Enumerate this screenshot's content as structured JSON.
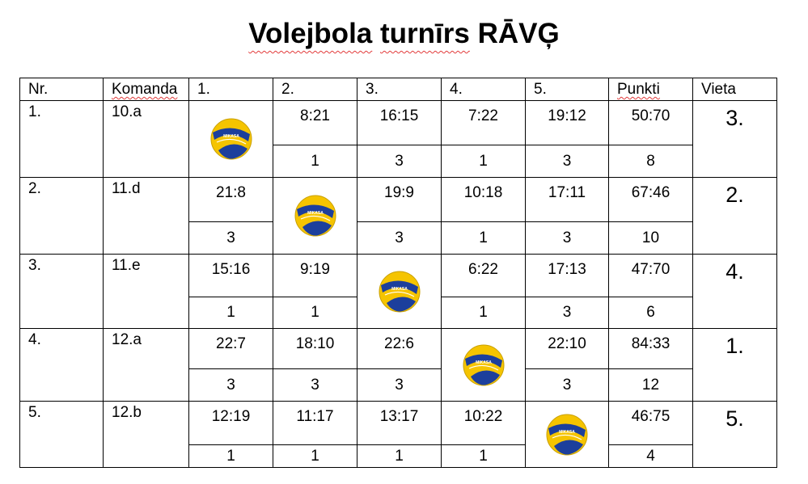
{
  "title": {
    "part1": "Volejbola",
    "part2": "turnīrs",
    "part3": "RĀVĢ"
  },
  "headers": [
    "Nr.",
    "Komanda",
    "1.",
    "2.",
    "3.",
    "4.",
    "5.",
    "Punkti",
    "Vieta"
  ],
  "rows": [
    {
      "nr": "1.",
      "team": "10.a",
      "scores": [
        "",
        "8:21",
        "16:15",
        "7:22",
        "19:12"
      ],
      "points": [
        "",
        "1",
        "3",
        "1",
        "3"
      ],
      "total_score": "50:70",
      "total_points": "8",
      "place": "3."
    },
    {
      "nr": "2.",
      "team": "11.d",
      "scores": [
        "21:8",
        "",
        "19:9",
        "10:18",
        "17:11"
      ],
      "points": [
        "3",
        "",
        "3",
        "1",
        "3"
      ],
      "total_score": "67:46",
      "total_points": "10",
      "place": "2."
    },
    {
      "nr": "3.",
      "team": "11.e",
      "scores": [
        "15:16",
        "9:19",
        "",
        "6:22",
        "17:13"
      ],
      "points": [
        "1",
        "1",
        "",
        "1",
        "3"
      ],
      "total_score": "47:70",
      "total_points": "6",
      "place": "4."
    },
    {
      "nr": "4.",
      "team": "12.a",
      "scores": [
        "22:7",
        "18:10",
        "22:6",
        "",
        "22:10"
      ],
      "points": [
        "3",
        "3",
        "3",
        "",
        "3"
      ],
      "total_score": "84:33",
      "total_points": "12",
      "place": "1."
    },
    {
      "nr": "5.",
      "team": "12.b",
      "scores": [
        "12:19",
        "11:17",
        "13:17",
        "10:22",
        ""
      ],
      "points": [
        "1",
        "1",
        "1",
        "1",
        ""
      ],
      "total_score": "46:75",
      "total_points": "4",
      "place": "5."
    }
  ],
  "colors": {
    "ball_yellow": "#f5c400",
    "ball_blue": "#1c3f9c",
    "spellcheck": "#e23b3b"
  },
  "icon": "volleyball-icon"
}
